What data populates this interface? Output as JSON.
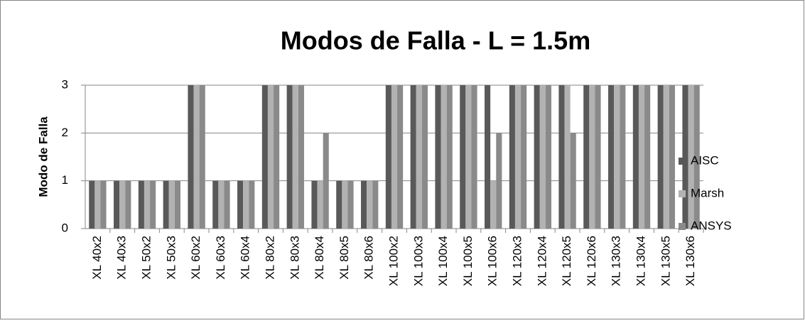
{
  "chart_data": {
    "type": "bar",
    "title": "Modos de Falla - L = 1.5m",
    "y_label": "Modo de Falla",
    "categories": [
      "XL 40x2",
      "XL 40x3",
      "XL 50x2",
      "XL 50x3",
      "XL 60x2",
      "XL 60x3",
      "XL 60x4",
      "XL 80x2",
      "XL 80x3",
      "XL 80x4",
      "XL 80x5",
      "XL 80x6",
      "XL 100x2",
      "XL 100x3",
      "XL 100x4",
      "XL 100x5",
      "XL 100x6",
      "XL 120x3",
      "XL 120x4",
      "XL 120x5",
      "XL 120x6",
      "XL 130x3",
      "XL 130x4",
      "XL 130x5",
      "XL 130x6"
    ],
    "series": [
      {
        "name": "AISC",
        "color": "#595959",
        "values": [
          1,
          1,
          1,
          1,
          3,
          1,
          1,
          3,
          3,
          1,
          1,
          1,
          3,
          3,
          3,
          3,
          3,
          3,
          3,
          3,
          3,
          3,
          3,
          3,
          3
        ]
      },
      {
        "name": "Marsh",
        "color": "#b2b2b2",
        "values": [
          1,
          1,
          1,
          1,
          3,
          1,
          1,
          3,
          3,
          1,
          1,
          1,
          3,
          3,
          3,
          3,
          1,
          3,
          3,
          3,
          3,
          3,
          3,
          3,
          3
        ]
      },
      {
        "name": "ANSYS",
        "color": "#8a8a8a",
        "values": [
          1,
          1,
          1,
          1,
          3,
          1,
          1,
          3,
          3,
          2,
          1,
          1,
          3,
          3,
          3,
          3,
          2,
          3,
          3,
          2,
          3,
          3,
          3,
          3,
          3
        ]
      }
    ],
    "ylim": [
      0,
      3
    ],
    "yticks": [
      0,
      1,
      2,
      3
    ],
    "grid": true,
    "legend": "right"
  }
}
